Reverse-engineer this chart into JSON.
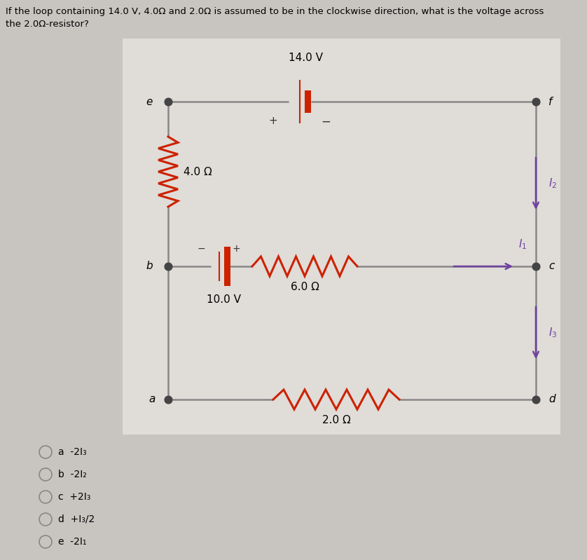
{
  "bg_outer": "#c8c4c0",
  "bg_circuit": "#e0dcd8",
  "bg_choices": "#c8c4c0",
  "wire_color": "#888888",
  "resistor_color": "#cc2200",
  "battery_color": "#cc2200",
  "node_color": "#444444",
  "label_color": "#000000",
  "current_color": "#7040a0",
  "question": "If the loop containing 14.0 V, 4.0Ω and 2.0Ω is assumed to be in the clockwise direction, what is the voltage across\nthe 2.0Ω-resistor?",
  "choices": [
    "a  -2I₃",
    "b  -2I₂",
    "c  +2I₃",
    "d  +I₃/2",
    "e  -2I₁"
  ]
}
